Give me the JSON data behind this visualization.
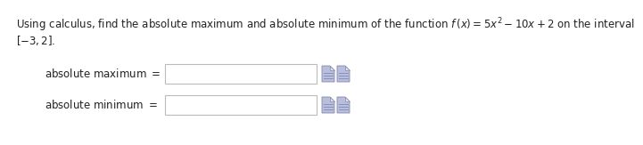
{
  "title_line1": "Using calculus, find the absolute maximum and absolute minimum of the function $f\\,(x) = 5x^2 - 10x + 2$ on the interval",
  "title_line2": "$[-3, 2]$.",
  "label_max": "absolute maximum $=$",
  "label_min": "absolute minimum $=$",
  "bg_color": "#ffffff",
  "text_color": "#222222",
  "box_facecolor": "#ffffff",
  "box_edgecolor": "#bbbbbb",
  "font_size_title": 8.5,
  "font_size_labels": 8.5,
  "icon_face": "#b8bfdd",
  "icon_edge": "#8888aa",
  "icon_fold": "#dde0ef",
  "icon_dark": "#8890bb"
}
